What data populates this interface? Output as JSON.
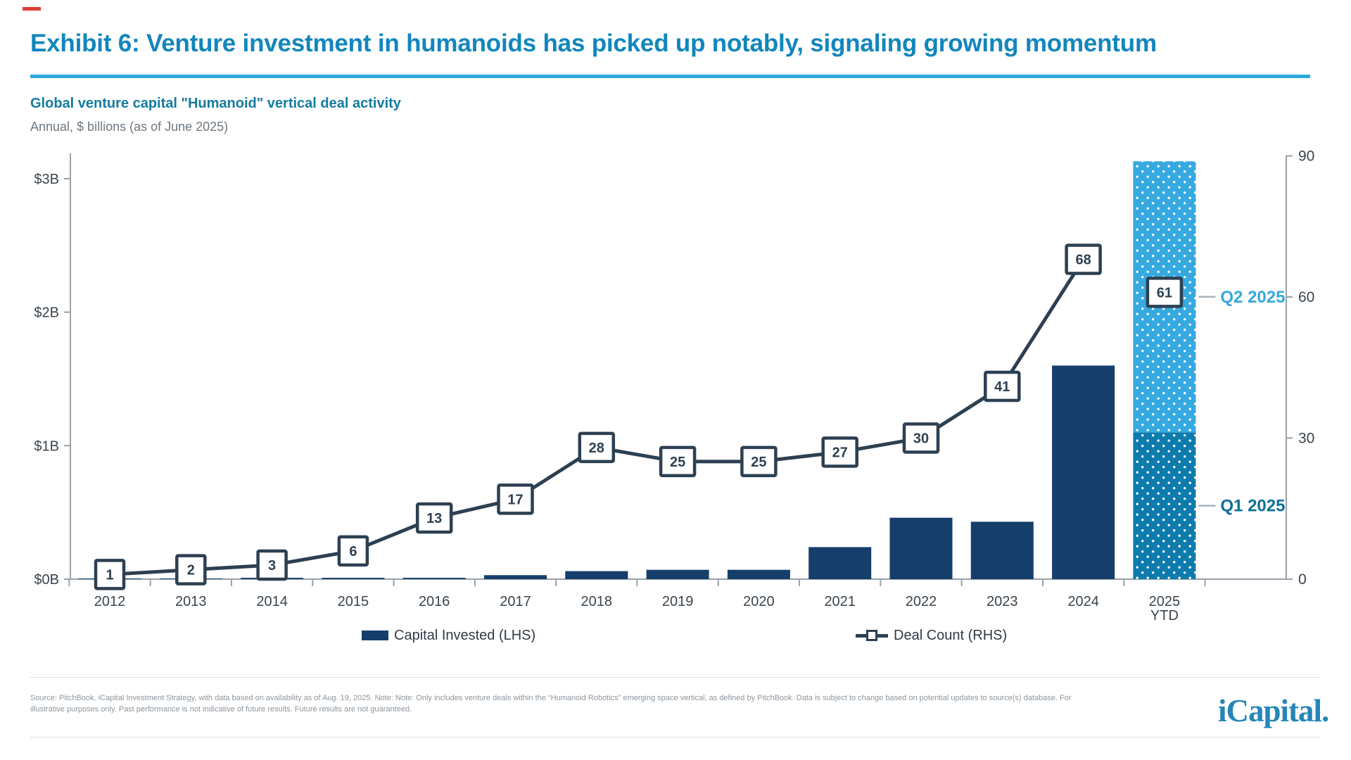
{
  "header": {
    "title": "Exhibit 6: Venture investment in humanoids has picked up notably, signaling growing momentum",
    "subtitle": "Global venture capital \"Humanoid\" vertical deal activity",
    "caption": "Annual, $ billions (as of June 2025)"
  },
  "chart_data": {
    "type": "combo bar+line",
    "categories": [
      "2012",
      "2013",
      "2014",
      "2015",
      "2016",
      "2017",
      "2018",
      "2019",
      "2020",
      "2021",
      "2022",
      "2023",
      "2024",
      "2025 YTD"
    ],
    "series": [
      {
        "name": "Capital Invested (LHS)",
        "type": "bar",
        "axis": "left",
        "unit": "$B",
        "values": [
          0.005,
          0.005,
          0.01,
          0.01,
          0.01,
          0.03,
          0.06,
          0.07,
          0.07,
          0.24,
          0.46,
          0.43,
          1.6,
          3.13
        ]
      },
      {
        "name": "Deal Count (RHS)",
        "type": "line",
        "axis": "right",
        "values": [
          1,
          2,
          3,
          6,
          13,
          17,
          28,
          25,
          25,
          27,
          30,
          41,
          68,
          61
        ],
        "line_end_index": 12
      }
    ],
    "stacked_index": 13,
    "stacked_split": {
      "q1": 1.1,
      "q2": 2.03
    },
    "left_axis": {
      "tick_labels": [
        "$0B",
        "$1B",
        "$2B",
        "$3B"
      ],
      "range": [
        0,
        3.16
      ]
    },
    "right_axis": {
      "tick_labels": [
        "0",
        "30",
        "60",
        "90"
      ],
      "range": [
        0,
        90
      ]
    },
    "legend": [
      "Capital Invested (LHS)",
      "Deal Count (RHS)"
    ],
    "annotations": {
      "q1_label": "Q1 2025",
      "q2_label": "Q2 2025"
    },
    "colors": {
      "bar_navy": "#153e6b",
      "line_slate": "#2d4052",
      "q1_segment": "#0e7bad",
      "q2_segment": "#36a9e1",
      "q1_text": "#0d6f9b",
      "q2_text": "#35a8dc",
      "axis_line": "#9aa1a8",
      "tick_text": "#3a444e",
      "connector": "#a9b1b8",
      "marker_fill": "#ffffff"
    }
  },
  "footer": {
    "source_lines": [
      "Source: PitchBook, iCapital Investment Strategy, with data based on availability as of Aug. 19, 2025. Note: Note: Only includes venture deals within the “Humanoid Robotics” emerging space vertical, as defined by PitchBook. Data is subject to change based on potential updates to source(s) database. For",
      "illustrative purposes only. Past performance is not indicative of future results. Future results are not guaranteed."
    ],
    "logo_text": "iCapital."
  }
}
